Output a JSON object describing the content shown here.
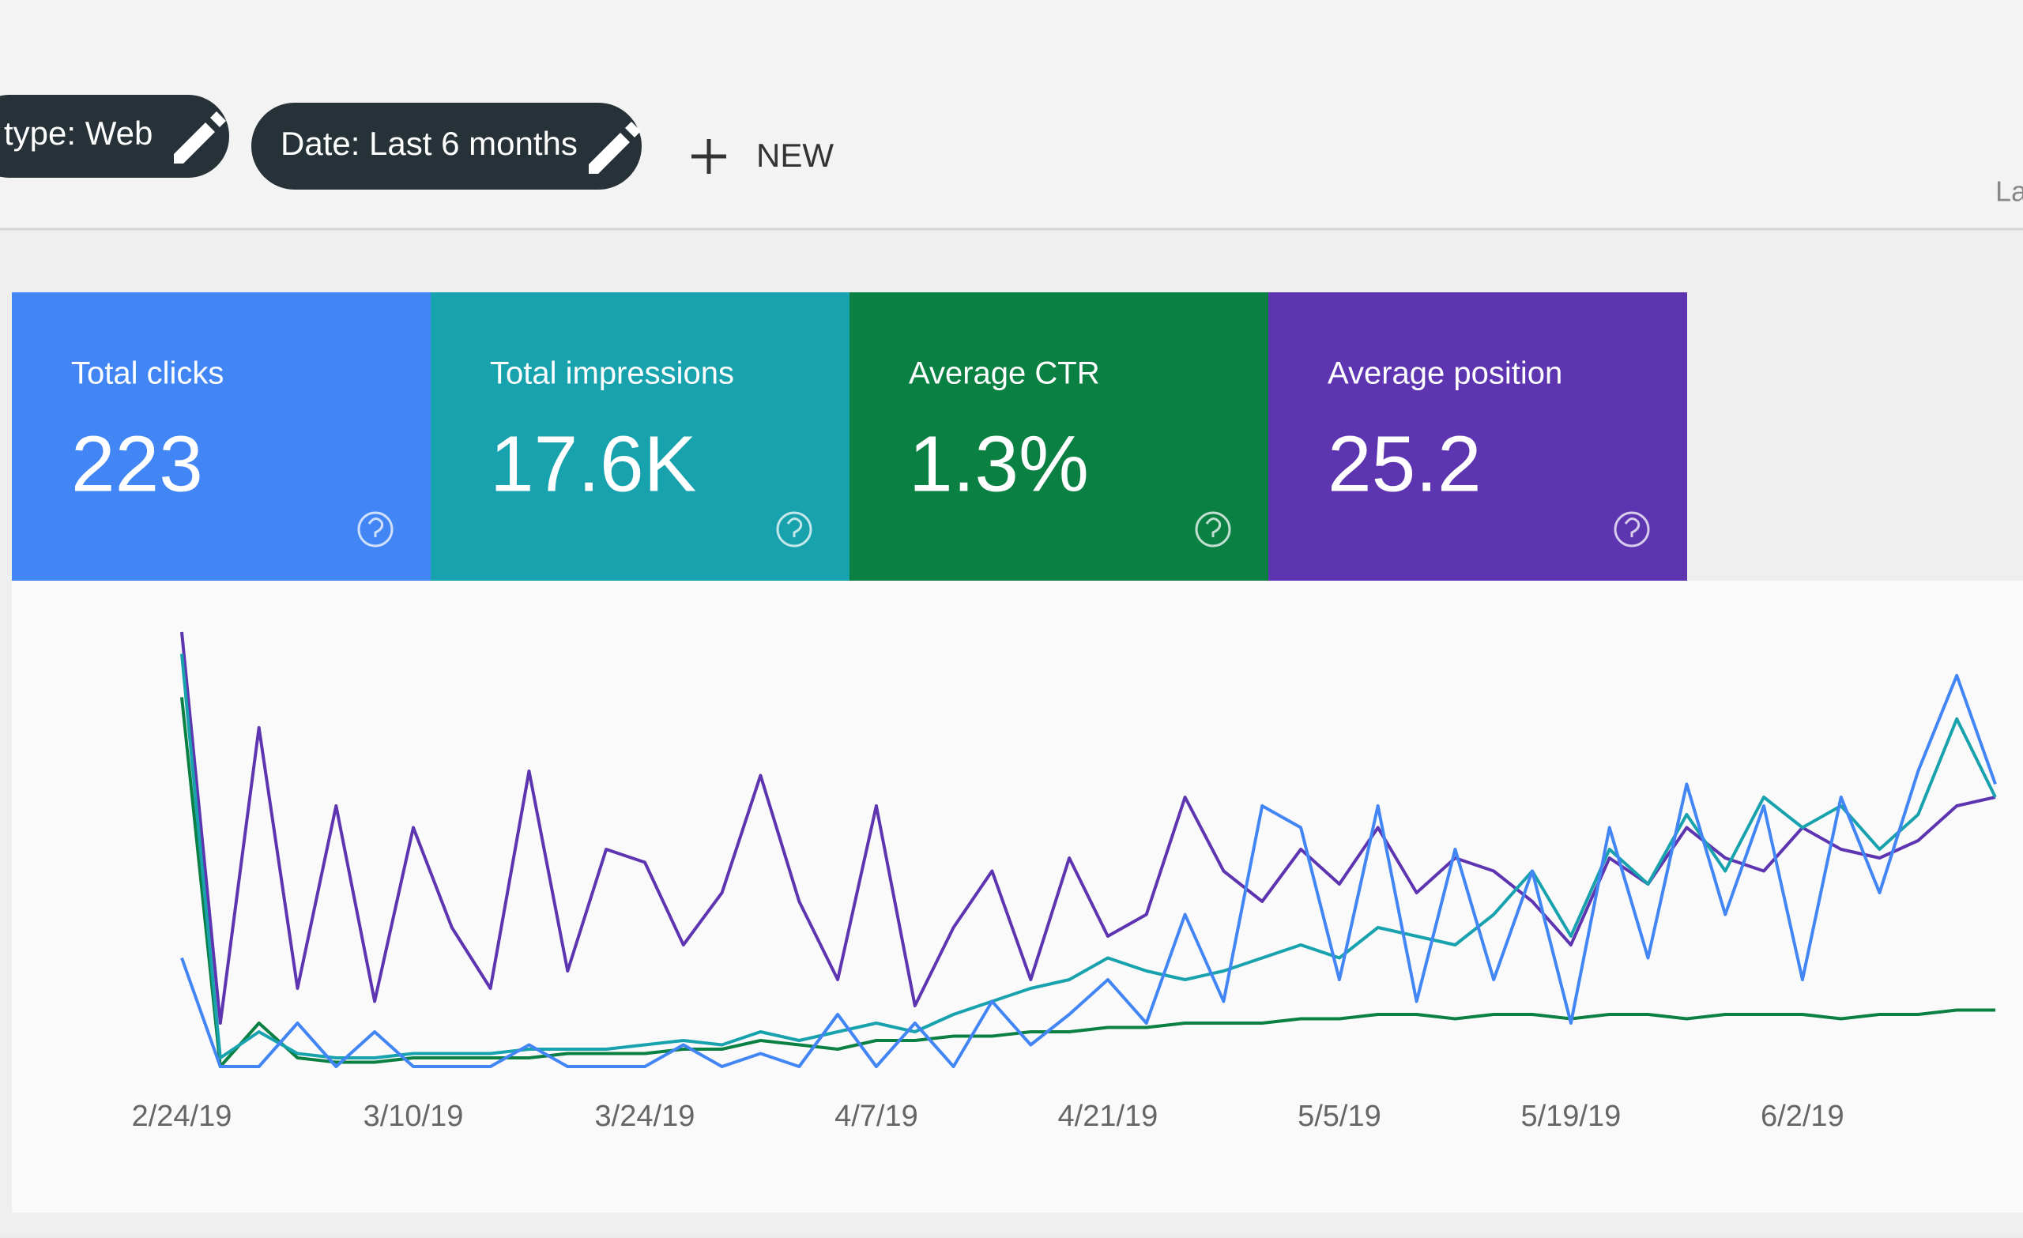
{
  "toolbar": {
    "filters": [
      "type: Web",
      "Date: Last 6 months"
    ],
    "new_button": "NEW",
    "right_text": "La"
  },
  "chart_data": {
    "type": "line",
    "categories": [
      "2/24/19",
      null,
      null,
      null,
      null,
      null,
      "3/10/19",
      null,
      null,
      null,
      null,
      null,
      "3/24/19",
      null,
      null,
      null,
      null,
      null,
      "4/7/19",
      null,
      null,
      null,
      null,
      null,
      "4/21/19",
      null,
      null,
      null,
      null,
      null,
      "5/5/19",
      null,
      null,
      null,
      null,
      null,
      "5/19/19",
      null,
      null,
      null,
      null,
      null,
      "6/2/19",
      null,
      null,
      null,
      null,
      null
    ],
    "series": [
      {
        "name": "Total clicks",
        "total": "223",
        "color": "#4285f4",
        "values": [
          25,
          0,
          0,
          10,
          0,
          8,
          0,
          0,
          0,
          5,
          0,
          0,
          0,
          5,
          0,
          3,
          0,
          12,
          0,
          10,
          0,
          15,
          5,
          12,
          20,
          10,
          35,
          15,
          60,
          55,
          20,
          60,
          15,
          50,
          20,
          45,
          10,
          55,
          25,
          65,
          35,
          60,
          20,
          62,
          40,
          68,
          90,
          65
        ]
      },
      {
        "name": "Total impressions",
        "total": "17.6K",
        "color": "#17a2ad",
        "values": [
          95,
          2,
          8,
          3,
          2,
          2,
          3,
          3,
          3,
          4,
          4,
          4,
          5,
          6,
          5,
          8,
          6,
          8,
          10,
          8,
          12,
          15,
          18,
          20,
          25,
          22,
          20,
          22,
          25,
          28,
          25,
          32,
          30,
          28,
          35,
          45,
          30,
          50,
          42,
          58,
          45,
          62,
          55,
          60,
          50,
          58,
          80,
          62
        ]
      },
      {
        "name": "Average CTR",
        "total": "1.3%",
        "color": "#0b8043",
        "values": [
          85,
          0,
          10,
          2,
          1,
          1,
          2,
          2,
          2,
          2,
          3,
          3,
          3,
          4,
          4,
          6,
          5,
          4,
          6,
          6,
          7,
          7,
          8,
          8,
          9,
          9,
          10,
          10,
          10,
          11,
          11,
          12,
          12,
          11,
          12,
          12,
          11,
          12,
          12,
          11,
          12,
          12,
          12,
          11,
          12,
          12,
          13,
          13
        ]
      },
      {
        "name": "Average position",
        "total": "25.2",
        "color": "#5e35b1",
        "values": [
          100,
          10,
          78,
          18,
          60,
          15,
          55,
          32,
          18,
          68,
          22,
          50,
          47,
          28,
          40,
          67,
          38,
          20,
          60,
          14,
          32,
          45,
          20,
          48,
          30,
          35,
          62,
          45,
          38,
          50,
          42,
          55,
          40,
          48,
          45,
          38,
          28,
          48,
          42,
          55,
          48,
          45,
          55,
          50,
          48,
          52,
          60,
          62
        ]
      }
    ]
  }
}
